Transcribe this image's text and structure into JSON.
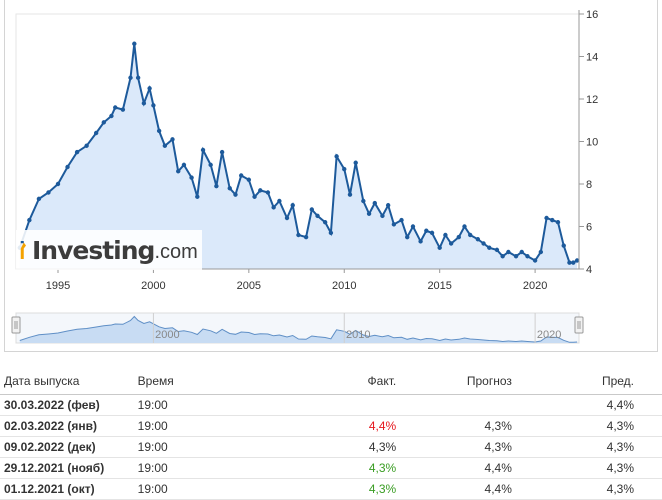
{
  "chart_data": {
    "type": "line",
    "title": "",
    "xlabel": "",
    "ylabel": "",
    "xlim": [
      1992.8,
      2022.3
    ],
    "ylim": [
      4,
      16
    ],
    "x_ticks": [
      "1995",
      "2000",
      "2005",
      "2010",
      "2015",
      "2020"
    ],
    "y_ticks": [
      "4",
      "6",
      "8",
      "10",
      "12",
      "14",
      "16"
    ],
    "navigator_ticks": [
      "2000",
      "2010",
      "2020"
    ],
    "grid": false,
    "legend": "none",
    "series": [
      {
        "x": [
          1993.0,
          1993.5,
          1994.0,
          1994.5,
          1995.0,
          1995.5,
          1996.0,
          1996.5,
          1997.0,
          1997.4,
          1997.8,
          1998.0,
          1998.4,
          1998.8,
          1999.0,
          1999.2,
          1999.5,
          1999.8,
          2000.0,
          2000.3,
          2000.6,
          2001.0,
          2001.3,
          2001.6,
          2002.0,
          2002.3,
          2002.6,
          2003.0,
          2003.3,
          2003.6,
          2004.0,
          2004.3,
          2004.6,
          2005.0,
          2005.3,
          2005.6,
          2006.0,
          2006.3,
          2006.6,
          2007.0,
          2007.3,
          2007.6,
          2008.0,
          2008.3,
          2008.6,
          2009.0,
          2009.3,
          2009.6,
          2010.0,
          2010.3,
          2010.6,
          2011.0,
          2011.3,
          2011.6,
          2012.0,
          2012.3,
          2012.6,
          2013.0,
          2013.3,
          2013.6,
          2014.0,
          2014.3,
          2014.6,
          2015.0,
          2015.3,
          2015.6,
          2016.0,
          2016.3,
          2016.6,
          2017.0,
          2017.3,
          2017.6,
          2018.0,
          2018.3,
          2018.6,
          2019.0,
          2019.3,
          2019.6,
          2020.0,
          2020.3,
          2020.6,
          2020.9,
          2021.2,
          2021.5,
          2021.8,
          2022.0,
          2022.2
        ],
        "y": [
          5.0,
          6.3,
          7.3,
          7.6,
          8.0,
          8.8,
          9.5,
          9.8,
          10.4,
          10.9,
          11.2,
          11.6,
          11.5,
          13.0,
          14.6,
          13.0,
          11.8,
          12.5,
          11.7,
          10.5,
          9.8,
          10.1,
          8.6,
          8.9,
          8.3,
          7.4,
          9.6,
          8.9,
          7.9,
          9.5,
          7.8,
          7.5,
          8.4,
          8.2,
          7.4,
          7.7,
          7.6,
          6.9,
          7.2,
          6.4,
          7.0,
          5.6,
          5.5,
          6.8,
          6.5,
          6.2,
          5.7,
          9.3,
          8.7,
          7.5,
          9.0,
          7.2,
          6.6,
          7.1,
          6.5,
          7.0,
          6.1,
          6.3,
          5.5,
          6.0,
          5.3,
          5.8,
          5.7,
          5.0,
          5.6,
          5.2,
          5.5,
          6.0,
          5.6,
          5.4,
          5.2,
          5.0,
          4.9,
          4.6,
          4.8,
          4.6,
          4.8,
          4.6,
          4.4,
          4.8,
          6.4,
          6.3,
          6.2,
          5.1,
          4.3,
          4.3,
          4.4
        ]
      }
    ]
  },
  "colors": {
    "line": "#1d5a9b",
    "fill": "#dbe9fa",
    "axis": "#999999",
    "actual_up": "#3a9d23",
    "actual_down": "#e5161c"
  },
  "logo": {
    "text": "Investing",
    "domain": ".com"
  },
  "table": {
    "headers": {
      "date": "Дата выпуска",
      "time": "Время",
      "actual": "Факт.",
      "forecast": "Прогноз",
      "previous": "Пред."
    },
    "rows": [
      {
        "date": "30.03.2022 (фев)",
        "time": "19:00",
        "actual": "",
        "actual_status": "",
        "forecast": "",
        "previous": "4,4%"
      },
      {
        "date": "02.03.2022 (янв)",
        "time": "19:00",
        "actual": "4,4%",
        "actual_status": "down",
        "forecast": "4,3%",
        "previous": "4,3%"
      },
      {
        "date": "09.02.2022 (дек)",
        "time": "19:00",
        "actual": "4,3%",
        "actual_status": "neutral",
        "forecast": "4,3%",
        "previous": "4,3%"
      },
      {
        "date": "29.12.2021 (нояб)",
        "time": "19:00",
        "actual": "4,3%",
        "actual_status": "up",
        "forecast": "4,4%",
        "previous": "4,3%"
      },
      {
        "date": "01.12.2021 (окт)",
        "time": "19:00",
        "actual": "4,3%",
        "actual_status": "up",
        "forecast": "4,4%",
        "previous": "4,3%"
      }
    ]
  }
}
